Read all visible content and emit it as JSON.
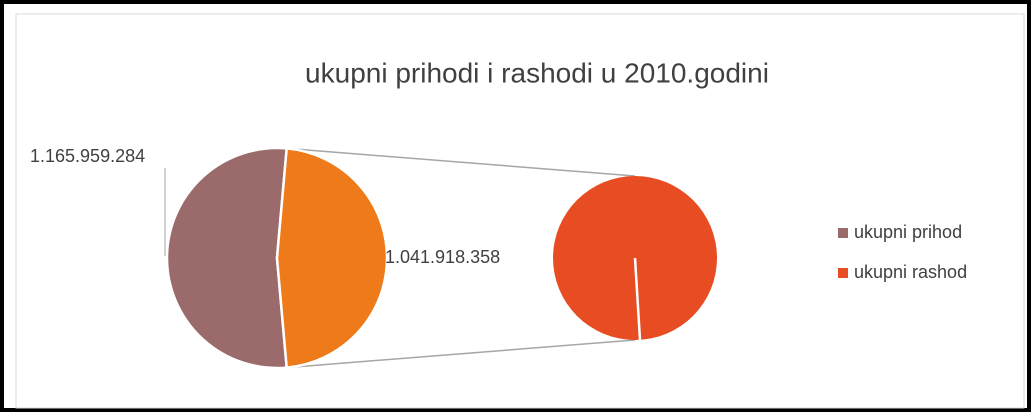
{
  "chart_data": {
    "type": "pie_of_pie",
    "title": "ukupni prihodi i rashodi u 2010.godini",
    "categories": [
      "ukupni prihod",
      "ukupni rashod"
    ],
    "values": [
      1165959284,
      1041918358
    ],
    "value_labels": [
      "1.165.959.284",
      "1.041.918.358"
    ],
    "colors": [
      "#9b6b6b",
      "#e84c22"
    ],
    "other_color": "#ee7a1a",
    "legend": "right"
  }
}
